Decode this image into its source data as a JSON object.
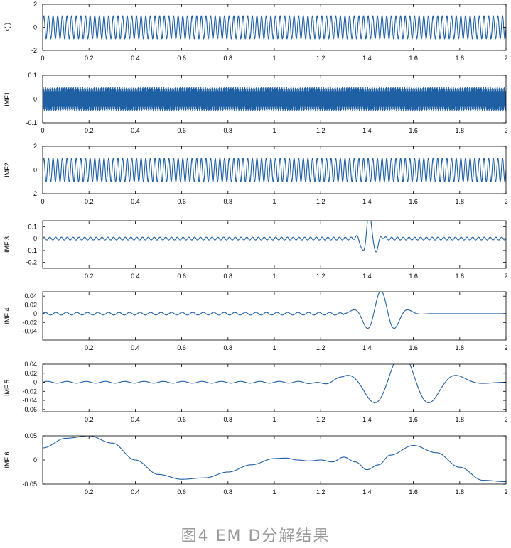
{
  "caption": "图4 EM D分解结果",
  "colors": {
    "line": "#1f5fa3",
    "axis": "#000000"
  },
  "chart_data": [
    {
      "type": "line",
      "ylabel": "x(t)",
      "xlim": [
        0,
        2
      ],
      "ylim": [
        -2,
        2
      ],
      "xticks": [
        0,
        0.2,
        0.4,
        0.6,
        0.8,
        1,
        1.2,
        1.4,
        1.6,
        1.8,
        2
      ],
      "xticklabels": [
        "0",
        "0.2",
        "0.4",
        "0.6",
        "0.8",
        "1",
        "1.2",
        "1.4",
        "1.6",
        "1.8",
        "2"
      ],
      "yticks": [
        -2,
        0,
        2
      ],
      "yticklabels": [
        "-2",
        "0",
        "2"
      ],
      "series": [
        {
          "values": [
            {
              "kind": "sine",
              "amp": 1.0,
              "freq": 50,
              "from": 0,
              "to": 2
            },
            {
              "kind": "sine",
              "amp": 0.05,
              "freq": 400,
              "from": 0,
              "to": 2
            }
          ]
        }
      ]
    },
    {
      "type": "line",
      "ylabel": "IMF1",
      "xlim": [
        0,
        2
      ],
      "ylim": [
        -0.1,
        0.1
      ],
      "xticks": [
        0,
        0.2,
        0.4,
        0.6,
        0.8,
        1,
        1.2,
        1.4,
        1.6,
        1.8,
        2
      ],
      "xticklabels": [
        "0",
        "0.2",
        "0.4",
        "0.6",
        "0.8",
        "1",
        "1.2",
        "1.4",
        "1.6",
        "1.8",
        "2"
      ],
      "yticks": [
        -0.1,
        0,
        0.1
      ],
      "yticklabels": [
        "-0.1",
        "0",
        "0.1"
      ],
      "series": [
        {
          "values": [
            {
              "kind": "sine",
              "amp": 0.05,
              "freq": 400,
              "from": 0,
              "to": 2
            }
          ]
        }
      ]
    },
    {
      "type": "line",
      "ylabel": "IMF2",
      "xlim": [
        0,
        2
      ],
      "ylim": [
        -2,
        2
      ],
      "xticks": [
        0,
        0.2,
        0.4,
        0.6,
        0.8,
        1,
        1.2,
        1.4,
        1.6,
        1.8,
        2
      ],
      "xticklabels": [
        "0",
        "0.2",
        "0.4",
        "0.6",
        "0.8",
        "1",
        "1.2",
        "1.4",
        "1.6",
        "1.8",
        "2"
      ],
      "yticks": [
        -2,
        0,
        2
      ],
      "yticklabels": [
        "-2",
        "0",
        "2"
      ],
      "series": [
        {
          "values": [
            {
              "kind": "sine",
              "amp": 1.0,
              "freq": 50,
              "from": 0,
              "to": 2
            }
          ]
        }
      ]
    },
    {
      "type": "line",
      "ylabel": "IMF 3",
      "xlim": [
        0,
        2
      ],
      "ylim": [
        -0.25,
        0.15
      ],
      "xticks": [
        0.2,
        0.4,
        0.6,
        0.8,
        1,
        1.2,
        1.4,
        1.6,
        1.8,
        2
      ],
      "xticklabels": [
        "0.2",
        "0.4",
        "0.6",
        "0.8",
        "1",
        "1.2",
        "1.4",
        "1.6",
        "1.8",
        "2"
      ],
      "yticks": [
        -0.2,
        -0.1,
        0,
        0.1
      ],
      "yticklabels": [
        "-0.2",
        "-0.1",
        "0",
        "0.1"
      ],
      "series": [
        {
          "values": [
            {
              "kind": "sine",
              "amp": 0.012,
              "freq": 40,
              "from": 0,
              "to": 2
            },
            {
              "kind": "burst",
              "amp": 0.22,
              "freq": 16,
              "center": 1.41,
              "width": 0.035
            }
          ]
        }
      ]
    },
    {
      "type": "line",
      "ylabel": "IMF 4",
      "xlim": [
        0,
        2
      ],
      "ylim": [
        -0.06,
        0.05
      ],
      "xticks": [
        0.2,
        0.4,
        0.6,
        0.8,
        1,
        1.2,
        1.4,
        1.6,
        1.8,
        2
      ],
      "xticklabels": [
        "0.2",
        "0.4",
        "0.6",
        "0.8",
        "1",
        "1.2",
        "1.4",
        "1.6",
        "1.8",
        "2"
      ],
      "yticks": [
        -0.04,
        -0.02,
        0,
        0.02,
        0.04
      ],
      "yticklabels": [
        "-0.04",
        "-0.02",
        "0",
        "0.02",
        "0.04"
      ],
      "series": [
        {
          "values": [
            {
              "kind": "sine",
              "amp": 0.003,
              "freq": 22,
              "from": 0,
              "to": 1.3
            },
            {
              "kind": "burst",
              "amp": 0.052,
              "freq": 8,
              "center": 1.46,
              "width": 0.09
            }
          ]
        }
      ]
    },
    {
      "type": "line",
      "ylabel": "IMF 5",
      "xlim": [
        0,
        2
      ],
      "ylim": [
        -0.065,
        0.04
      ],
      "xticks": [
        0.2,
        0.4,
        0.6,
        0.8,
        1,
        1.2,
        1.4,
        1.6,
        1.8,
        2
      ],
      "xticklabels": [
        "0.2",
        "0.4",
        "0.6",
        "0.8",
        "1",
        "1.2",
        "1.4",
        "1.6",
        "1.8",
        "2"
      ],
      "yticks": [
        -0.06,
        -0.04,
        -0.02,
        0,
        0.02,
        0.04
      ],
      "yticklabels": [
        "-0.06",
        "-0.04",
        "-0.02",
        "0",
        "0.02",
        "0.04"
      ],
      "series": [
        {
          "values": [
            {
              "kind": "sine",
              "amp": 0.002,
              "freq": 12,
              "from": 0,
              "to": 1.3
            },
            {
              "kind": "burst",
              "amp": 0.065,
              "freq": 4,
              "center": 1.55,
              "width": 0.2
            }
          ]
        }
      ]
    },
    {
      "type": "line",
      "ylabel": "IMF 6",
      "xlim": [
        0,
        2
      ],
      "ylim": [
        -0.05,
        0.05
      ],
      "xticks": [
        0.2,
        0.4,
        0.6,
        0.8,
        1,
        1.2,
        1.4,
        1.6,
        1.8,
        2
      ],
      "xticklabels": [
        "0.2",
        "0.4",
        "0.6",
        "0.8",
        "1",
        "1.2",
        "1.4",
        "1.6",
        "1.8",
        "2"
      ],
      "yticks": [
        -0.05,
        0,
        0.05
      ],
      "yticklabels": [
        "-0.05",
        "0",
        "0.05"
      ],
      "points": [
        [
          0,
          0.025
        ],
        [
          0.1,
          0.045
        ],
        [
          0.2,
          0.05
        ],
        [
          0.3,
          0.035
        ],
        [
          0.4,
          0.0
        ],
        [
          0.5,
          -0.03
        ],
        [
          0.6,
          -0.04
        ],
        [
          0.7,
          -0.037
        ],
        [
          0.8,
          -0.025
        ],
        [
          0.9,
          -0.01
        ],
        [
          1.0,
          0.003
        ],
        [
          1.05,
          0.004
        ],
        [
          1.1,
          0.0
        ],
        [
          1.15,
          -0.002
        ],
        [
          1.2,
          0.0
        ],
        [
          1.25,
          -0.004
        ],
        [
          1.3,
          0.006
        ],
        [
          1.35,
          -0.004
        ],
        [
          1.4,
          -0.02
        ],
        [
          1.45,
          -0.01
        ],
        [
          1.5,
          0.01
        ],
        [
          1.6,
          0.03
        ],
        [
          1.7,
          0.015
        ],
        [
          1.8,
          -0.015
        ],
        [
          1.9,
          -0.042
        ],
        [
          2.0,
          -0.045
        ]
      ]
    }
  ]
}
